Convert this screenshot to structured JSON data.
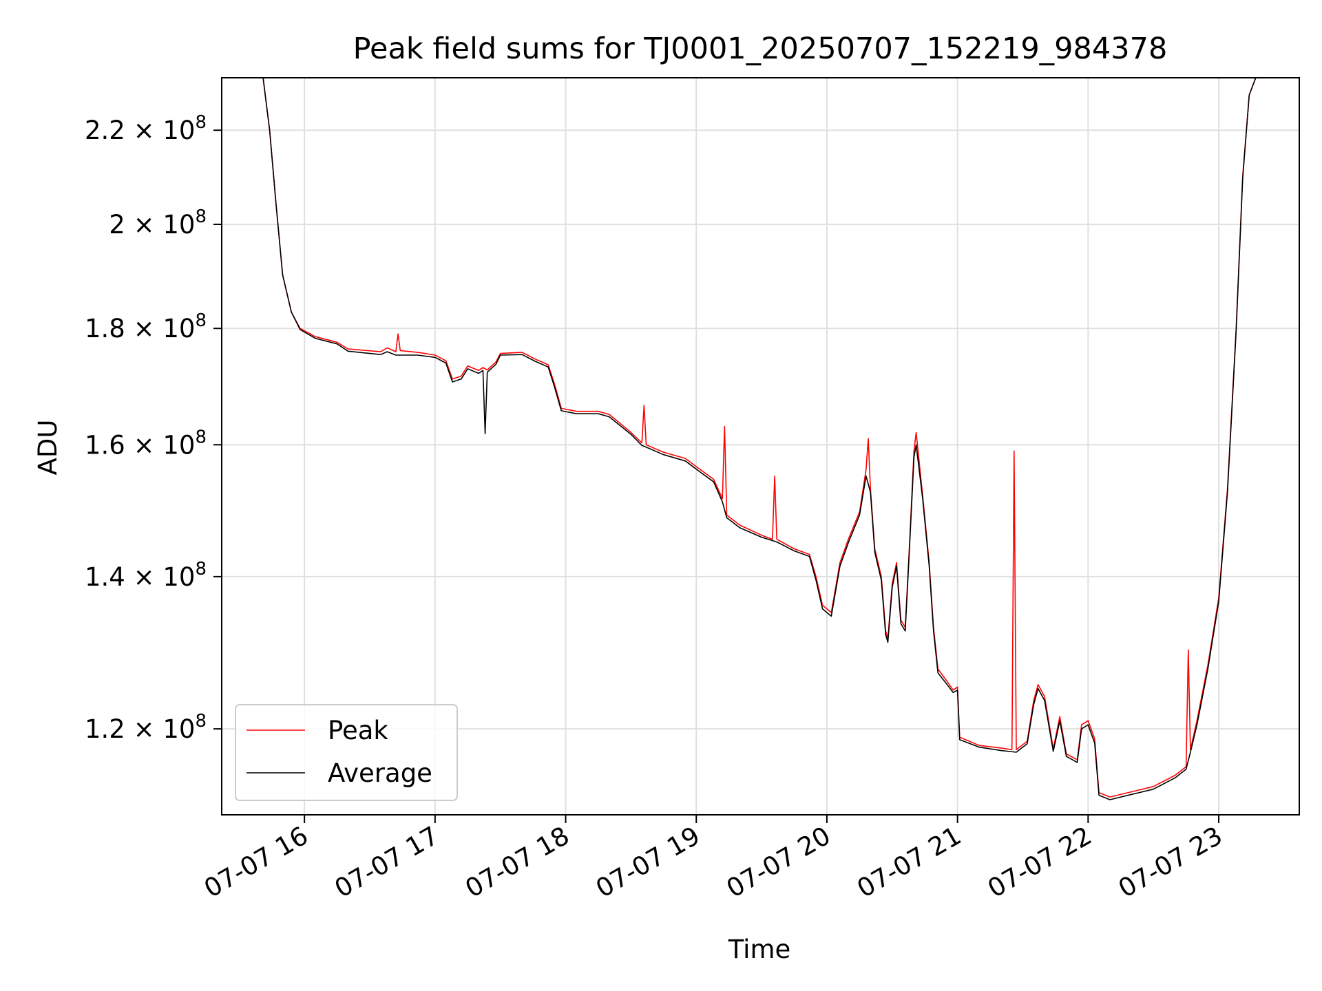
{
  "chart_data": {
    "type": "line",
    "title": "Peak field sums for TJ0001_20250707_152219_984378",
    "xlabel": "Time",
    "ylabel": "ADU",
    "yscale": "log",
    "grid": true,
    "legend_position": "lower-left",
    "xlim": [
      "2025-07-07 15:22",
      "2025-07-07 23:37"
    ],
    "ylim": [
      110000000,
      232000000
    ],
    "x_ticks": [
      {
        "value": "2025-07-07 16:00",
        "label": "07-07 16"
      },
      {
        "value": "2025-07-07 17:00",
        "label": "07-07 17"
      },
      {
        "value": "2025-07-07 18:00",
        "label": "07-07 18"
      },
      {
        "value": "2025-07-07 19:00",
        "label": "07-07 19"
      },
      {
        "value": "2025-07-07 20:00",
        "label": "07-07 20"
      },
      {
        "value": "2025-07-07 21:00",
        "label": "07-07 21"
      },
      {
        "value": "2025-07-07 22:00",
        "label": "07-07 22"
      },
      {
        "value": "2025-07-07 23:00",
        "label": "07-07 23"
      }
    ],
    "y_ticks": [
      {
        "value": 120000000,
        "mantissa": "1.2",
        "base": "10",
        "exponent": "8"
      },
      {
        "value": 140000000,
        "mantissa": "1.4",
        "base": "10",
        "exponent": "8"
      },
      {
        "value": 160000000,
        "mantissa": "1.6",
        "base": "10",
        "exponent": "8"
      },
      {
        "value": 180000000,
        "mantissa": "1.8",
        "base": "10",
        "exponent": "8"
      },
      {
        "value": 200000000,
        "mantissa": "2",
        "base": "10",
        "exponent": "8"
      },
      {
        "value": 220000000,
        "mantissa": "2.2",
        "base": "10",
        "exponent": "8"
      }
    ],
    "series": [
      {
        "name": "Peak",
        "color": "#ff0000",
        "points": [
          [
            "2025-07-07 15:41",
            232000000
          ],
          [
            "2025-07-07 15:44",
            220000000
          ],
          [
            "2025-07-07 15:47",
            204000000
          ],
          [
            "2025-07-07 15:50",
            190000000
          ],
          [
            "2025-07-07 15:54",
            183000000
          ],
          [
            "2025-07-07 15:58",
            180000000
          ],
          [
            "2025-07-07 16:05",
            178500000
          ],
          [
            "2025-07-07 16:15",
            177500000
          ],
          [
            "2025-07-07 16:20",
            176300000
          ],
          [
            "2025-07-07 16:35",
            175800000
          ],
          [
            "2025-07-07 16:38",
            176500000
          ],
          [
            "2025-07-07 16:42",
            175800000
          ],
          [
            "2025-07-07 16:43",
            179000000
          ],
          [
            "2025-07-07 16:44",
            176000000
          ],
          [
            "2025-07-07 16:52",
            175700000
          ],
          [
            "2025-07-07 17:00",
            175200000
          ],
          [
            "2025-07-07 17:05",
            174200000
          ],
          [
            "2025-07-07 17:08",
            171000000
          ],
          [
            "2025-07-07 17:12",
            171500000
          ],
          [
            "2025-07-07 17:15",
            173300000
          ],
          [
            "2025-07-07 17:20",
            172500000
          ],
          [
            "2025-07-07 17:22",
            173000000
          ],
          [
            "2025-07-07 17:24",
            172600000
          ],
          [
            "2025-07-07 17:28",
            174000000
          ],
          [
            "2025-07-07 17:30",
            175500000
          ],
          [
            "2025-07-07 17:40",
            175700000
          ],
          [
            "2025-07-07 17:46",
            174500000
          ],
          [
            "2025-07-07 17:52",
            173500000
          ],
          [
            "2025-07-07 17:55",
            170000000
          ],
          [
            "2025-07-07 17:58",
            166000000
          ],
          [
            "2025-07-07 18:05",
            165500000
          ],
          [
            "2025-07-07 18:15",
            165500000
          ],
          [
            "2025-07-07 18:20",
            165000000
          ],
          [
            "2025-07-07 18:30",
            162000000
          ],
          [
            "2025-07-07 18:35",
            160300000
          ],
          [
            "2025-07-07 18:36",
            166500000
          ],
          [
            "2025-07-07 18:37",
            160000000
          ],
          [
            "2025-07-07 18:45",
            158800000
          ],
          [
            "2025-07-07 18:55",
            157800000
          ],
          [
            "2025-07-07 19:00",
            156500000
          ],
          [
            "2025-07-07 19:08",
            154500000
          ],
          [
            "2025-07-07 19:12",
            151500000
          ],
          [
            "2025-07-07 19:13",
            163000000
          ],
          [
            "2025-07-07 19:14",
            149000000
          ],
          [
            "2025-07-07 19:20",
            147500000
          ],
          [
            "2025-07-07 19:30",
            146000000
          ],
          [
            "2025-07-07 19:35",
            145400000
          ],
          [
            "2025-07-07 19:36",
            155000000
          ],
          [
            "2025-07-07 19:37",
            145400000
          ],
          [
            "2025-07-07 19:45",
            144000000
          ],
          [
            "2025-07-07 19:52",
            143200000
          ],
          [
            "2025-07-07 19:55",
            140000000
          ],
          [
            "2025-07-07 19:58",
            136000000
          ],
          [
            "2025-07-07 20:02",
            135000000
          ],
          [
            "2025-07-07 20:06",
            142000000
          ],
          [
            "2025-07-07 20:10",
            145500000
          ],
          [
            "2025-07-07 20:15",
            149500000
          ],
          [
            "2025-07-07 20:18",
            156000000
          ],
          [
            "2025-07-07 20:19",
            161000000
          ],
          [
            "2025-07-07 20:20",
            153000000
          ],
          [
            "2025-07-07 20:22",
            144000000
          ],
          [
            "2025-07-07 20:25",
            140000000
          ],
          [
            "2025-07-07 20:27",
            132500000
          ],
          [
            "2025-07-07 20:28",
            131500000
          ],
          [
            "2025-07-07 20:30",
            139000000
          ],
          [
            "2025-07-07 20:32",
            142000000
          ],
          [
            "2025-07-07 20:34",
            134000000
          ],
          [
            "2025-07-07 20:36",
            133000000
          ],
          [
            "2025-07-07 20:38",
            145000000
          ],
          [
            "2025-07-07 20:40",
            159000000
          ],
          [
            "2025-07-07 20:41",
            162000000
          ],
          [
            "2025-07-07 20:44",
            152000000
          ],
          [
            "2025-07-07 20:47",
            142000000
          ],
          [
            "2025-07-07 20:49",
            133000000
          ],
          [
            "2025-07-07 20:51",
            127500000
          ],
          [
            "2025-07-07 20:55",
            126000000
          ],
          [
            "2025-07-07 20:58",
            124800000
          ],
          [
            "2025-07-07 21:00",
            125200000
          ],
          [
            "2025-07-07 21:01",
            119000000
          ],
          [
            "2025-07-07 21:10",
            118000000
          ],
          [
            "2025-07-07 21:20",
            117700000
          ],
          [
            "2025-07-07 21:25",
            117500000
          ],
          [
            "2025-07-07 21:26",
            159000000
          ],
          [
            "2025-07-07 21:27",
            117500000
          ],
          [
            "2025-07-07 21:32",
            118500000
          ],
          [
            "2025-07-07 21:35",
            123500000
          ],
          [
            "2025-07-07 21:37",
            125500000
          ],
          [
            "2025-07-07 21:40",
            124000000
          ],
          [
            "2025-07-07 21:44",
            117600000
          ],
          [
            "2025-07-07 21:47",
            121500000
          ],
          [
            "2025-07-07 21:50",
            117000000
          ],
          [
            "2025-07-07 21:55",
            116300000
          ],
          [
            "2025-07-07 21:57",
            120500000
          ],
          [
            "2025-07-07 22:00",
            121000000
          ],
          [
            "2025-07-07 22:03",
            118800000
          ],
          [
            "2025-07-07 22:05",
            112500000
          ],
          [
            "2025-07-07 22:10",
            112000000
          ],
          [
            "2025-07-07 22:20",
            112600000
          ],
          [
            "2025-07-07 22:30",
            113200000
          ],
          [
            "2025-07-07 22:40",
            114500000
          ],
          [
            "2025-07-07 22:45",
            115500000
          ],
          [
            "2025-07-07 22:46",
            130000000
          ],
          [
            "2025-07-07 22:47",
            117500000
          ],
          [
            "2025-07-07 22:50",
            121000000
          ],
          [
            "2025-07-07 22:55",
            128000000
          ],
          [
            "2025-07-07 23:00",
            137000000
          ],
          [
            "2025-07-07 23:04",
            153000000
          ],
          [
            "2025-07-07 23:08",
            180000000
          ],
          [
            "2025-07-07 23:11",
            210000000
          ],
          [
            "2025-07-07 23:14",
            228000000
          ],
          [
            "2025-07-07 23:17",
            232000000
          ]
        ]
      },
      {
        "name": "Average",
        "color": "#000000",
        "points": [
          [
            "2025-07-07 15:41",
            232000000
          ],
          [
            "2025-07-07 15:44",
            220000000
          ],
          [
            "2025-07-07 15:47",
            204000000
          ],
          [
            "2025-07-07 15:50",
            190000000
          ],
          [
            "2025-07-07 15:54",
            183000000
          ],
          [
            "2025-07-07 15:58",
            179800000
          ],
          [
            "2025-07-07 16:05",
            178200000
          ],
          [
            "2025-07-07 16:15",
            177200000
          ],
          [
            "2025-07-07 16:20",
            175900000
          ],
          [
            "2025-07-07 16:35",
            175300000
          ],
          [
            "2025-07-07 16:38",
            175800000
          ],
          [
            "2025-07-07 16:42",
            175200000
          ],
          [
            "2025-07-07 16:52",
            175200000
          ],
          [
            "2025-07-07 17:00",
            174800000
          ],
          [
            "2025-07-07 17:05",
            173800000
          ],
          [
            "2025-07-07 17:08",
            170500000
          ],
          [
            "2025-07-07 17:12",
            171000000
          ],
          [
            "2025-07-07 17:15",
            172800000
          ],
          [
            "2025-07-07 17:20",
            172000000
          ],
          [
            "2025-07-07 17:22",
            172500000
          ],
          [
            "2025-07-07 17:23",
            161800000
          ],
          [
            "2025-07-07 17:24",
            172200000
          ],
          [
            "2025-07-07 17:28",
            173600000
          ],
          [
            "2025-07-07 17:30",
            175200000
          ],
          [
            "2025-07-07 17:40",
            175300000
          ],
          [
            "2025-07-07 17:46",
            174100000
          ],
          [
            "2025-07-07 17:52",
            173100000
          ],
          [
            "2025-07-07 17:55",
            169500000
          ],
          [
            "2025-07-07 17:58",
            165600000
          ],
          [
            "2025-07-07 18:05",
            165100000
          ],
          [
            "2025-07-07 18:15",
            165100000
          ],
          [
            "2025-07-07 18:20",
            164600000
          ],
          [
            "2025-07-07 18:30",
            161700000
          ],
          [
            "2025-07-07 18:35",
            159900000
          ],
          [
            "2025-07-07 18:37",
            159600000
          ],
          [
            "2025-07-07 18:45",
            158400000
          ],
          [
            "2025-07-07 18:55",
            157400000
          ],
          [
            "2025-07-07 19:00",
            156100000
          ],
          [
            "2025-07-07 19:08",
            154100000
          ],
          [
            "2025-07-07 19:12",
            151000000
          ],
          [
            "2025-07-07 19:14",
            148600000
          ],
          [
            "2025-07-07 19:20",
            147100000
          ],
          [
            "2025-07-07 19:30",
            145700000
          ],
          [
            "2025-07-07 19:37",
            145000000
          ],
          [
            "2025-07-07 19:45",
            143700000
          ],
          [
            "2025-07-07 19:52",
            142900000
          ],
          [
            "2025-07-07 19:55",
            139500000
          ],
          [
            "2025-07-07 19:58",
            135500000
          ],
          [
            "2025-07-07 20:02",
            134500000
          ],
          [
            "2025-07-07 20:06",
            141500000
          ],
          [
            "2025-07-07 20:10",
            145000000
          ],
          [
            "2025-07-07 20:15",
            149000000
          ],
          [
            "2025-07-07 20:18",
            155000000
          ],
          [
            "2025-07-07 20:20",
            152500000
          ],
          [
            "2025-07-07 20:22",
            143500000
          ],
          [
            "2025-07-07 20:25",
            139500000
          ],
          [
            "2025-07-07 20:27",
            132000000
          ],
          [
            "2025-07-07 20:28",
            131000000
          ],
          [
            "2025-07-07 20:30",
            138500000
          ],
          [
            "2025-07-07 20:32",
            141500000
          ],
          [
            "2025-07-07 20:34",
            133500000
          ],
          [
            "2025-07-07 20:36",
            132500000
          ],
          [
            "2025-07-07 20:38",
            144500000
          ],
          [
            "2025-07-07 20:40",
            158000000
          ],
          [
            "2025-07-07 20:41",
            160000000
          ],
          [
            "2025-07-07 20:44",
            151500000
          ],
          [
            "2025-07-07 20:47",
            141500000
          ],
          [
            "2025-07-07 20:49",
            132500000
          ],
          [
            "2025-07-07 20:51",
            127000000
          ],
          [
            "2025-07-07 20:55",
            125600000
          ],
          [
            "2025-07-07 20:58",
            124500000
          ],
          [
            "2025-07-07 21:00",
            124800000
          ],
          [
            "2025-07-07 21:01",
            118700000
          ],
          [
            "2025-07-07 21:10",
            117800000
          ],
          [
            "2025-07-07 21:20",
            117400000
          ],
          [
            "2025-07-07 21:27",
            117200000
          ],
          [
            "2025-07-07 21:32",
            118200000
          ],
          [
            "2025-07-07 21:35",
            123000000
          ],
          [
            "2025-07-07 21:37",
            125000000
          ],
          [
            "2025-07-07 21:40",
            123500000
          ],
          [
            "2025-07-07 21:44",
            117300000
          ],
          [
            "2025-07-07 21:47",
            121000000
          ],
          [
            "2025-07-07 21:50",
            116700000
          ],
          [
            "2025-07-07 21:55",
            116000000
          ],
          [
            "2025-07-07 21:57",
            120000000
          ],
          [
            "2025-07-07 22:00",
            120500000
          ],
          [
            "2025-07-07 22:03",
            118300000
          ],
          [
            "2025-07-07 22:05",
            112200000
          ],
          [
            "2025-07-07 22:10",
            111700000
          ],
          [
            "2025-07-07 22:20",
            112300000
          ],
          [
            "2025-07-07 22:30",
            112900000
          ],
          [
            "2025-07-07 22:40",
            114200000
          ],
          [
            "2025-07-07 22:45",
            115200000
          ],
          [
            "2025-07-07 22:47",
            117200000
          ],
          [
            "2025-07-07 22:50",
            120500000
          ],
          [
            "2025-07-07 22:55",
            127500000
          ],
          [
            "2025-07-07 23:00",
            136500000
          ],
          [
            "2025-07-07 23:04",
            152500000
          ],
          [
            "2025-07-07 23:08",
            179500000
          ],
          [
            "2025-07-07 23:11",
            209500000
          ],
          [
            "2025-07-07 23:14",
            228000000
          ],
          [
            "2025-07-07 23:17",
            232000000
          ]
        ]
      }
    ]
  }
}
